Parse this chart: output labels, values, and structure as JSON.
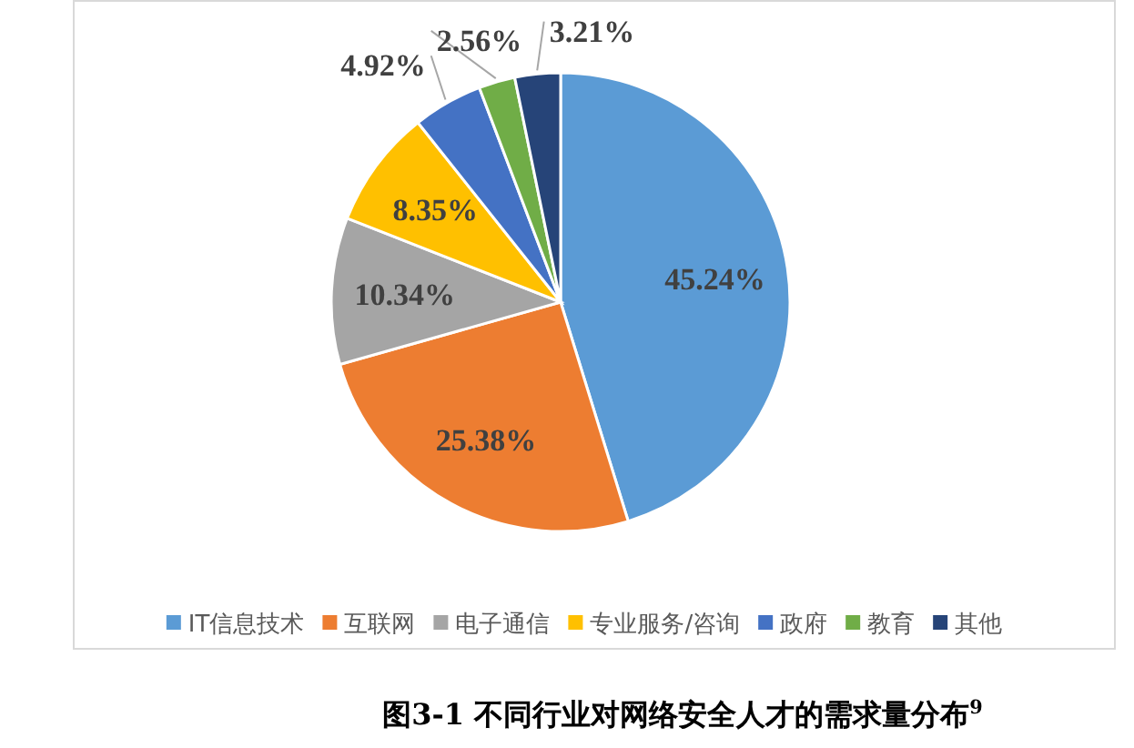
{
  "chart_data": {
    "type": "pie",
    "categories": [
      "IT信息技术",
      "互联网",
      "电子通信",
      "专业服务/咨询",
      "政府",
      "教育",
      "其他"
    ],
    "values": [
      45.24,
      25.38,
      10.34,
      8.35,
      4.92,
      2.56,
      3.21
    ],
    "value_labels": [
      "45.24%",
      "25.38%",
      "10.34%",
      "8.35%",
      "4.92%",
      "2.56%",
      "3.21%"
    ],
    "colors": [
      "#5b9bd5",
      "#ed7d31",
      "#a5a5a5",
      "#ffc000",
      "#4472c4",
      "#70ad47",
      "#264478"
    ],
    "legend": "bottom",
    "annotations": [
      "图3-1 不同行业对网络安全人才的需求量分布$^{9}$"
    ]
  }
}
